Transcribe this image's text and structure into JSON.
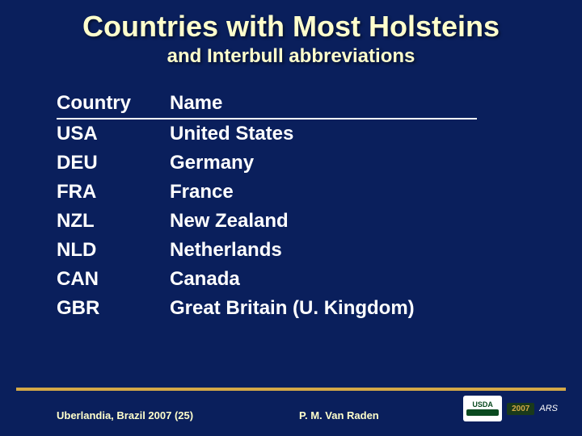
{
  "title": "Countries with Most Holsteins",
  "subtitle": "and Interbull abbreviations",
  "table": {
    "headers": {
      "code": "Country",
      "name": "Name"
    },
    "rows": [
      {
        "code": "USA",
        "name": "United States"
      },
      {
        "code": "DEU",
        "name": "Germany"
      },
      {
        "code": "FRA",
        "name": "France"
      },
      {
        "code": "NZL",
        "name": "New Zealand"
      },
      {
        "code": "NLD",
        "name": "Netherlands"
      },
      {
        "code": "CAN",
        "name": "Canada"
      },
      {
        "code": "GBR",
        "name": "Great Britain (U. Kingdom)"
      }
    ]
  },
  "footer": {
    "left": "Uberlandia, Brazil 2007 (25)",
    "center": "P. M. Van Raden",
    "logo_text": "USDA",
    "year": "2007",
    "ars": "ARS"
  },
  "colors": {
    "background": "#0a1f5c",
    "heading": "#ffffcc",
    "text": "#ffffff",
    "accent_line": "#d4a847"
  }
}
